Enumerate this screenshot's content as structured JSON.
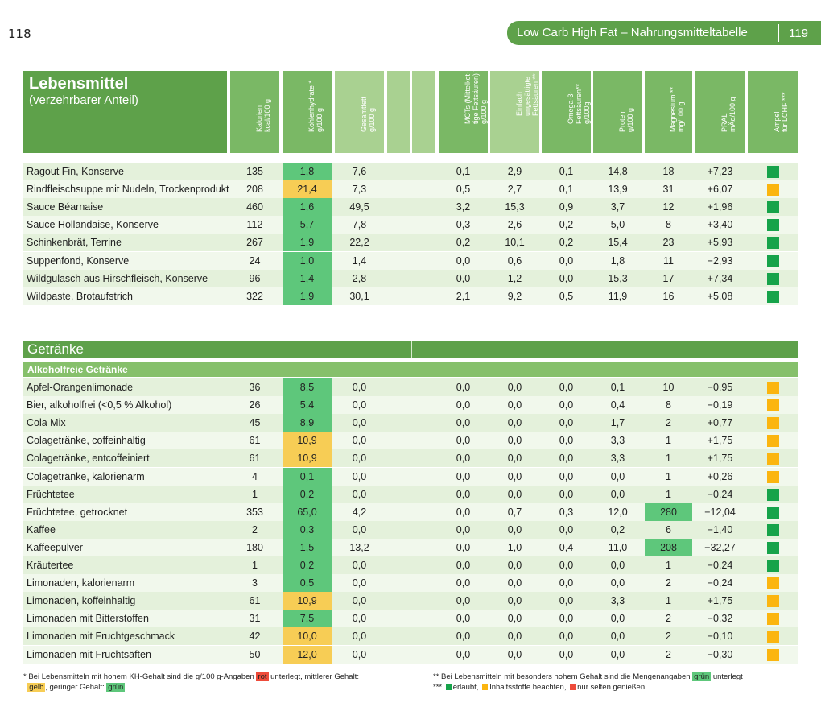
{
  "page": {
    "left_number": "118",
    "right_title": "Low Carb High Fat – Nahrungsmitteltabelle",
    "right_number": "119"
  },
  "header": {
    "title": "Lebensmittel",
    "subtitle": "(verzehrbarer Anteil)",
    "columns": [
      "Kalorien\nkcal/100 g",
      "Kohlenhydrate *\ng/100 g",
      "Gesamtfett\ng/100 g",
      "",
      "",
      "MCTs (Mittelket-\ntige Fettsäuren) **\ng/100 g",
      "Einfach\nungesättigte\nFettsäuren **\ng/100 g",
      "Omega-3-\nFettsäuren**\ng/100g",
      "Protein\ng/100 g",
      "Magnesium **\nmg/100 g",
      "PRAL\nmÄq/100 g",
      "Ampel\nfür LCHF ***"
    ]
  },
  "rows_top": [
    {
      "name": "Ragout Fin, Konserve",
      "kcal": "135",
      "kh": "1,8",
      "kh_hl": "g",
      "fat": "7,6",
      "mct": "0,1",
      "mufa": "2,9",
      "omega": "0,1",
      "protein": "14,8",
      "mg": "18",
      "mg_hl": "",
      "pral": "+7,23",
      "ampel": "g"
    },
    {
      "name": "Rindfleischsuppe mit Nudeln, Trockenprodukt",
      "kcal": "208",
      "kh": "21,4",
      "kh_hl": "y",
      "fat": "7,3",
      "mct": "0,5",
      "mufa": "2,7",
      "omega": "0,1",
      "protein": "13,9",
      "mg": "31",
      "mg_hl": "",
      "pral": "+6,07",
      "ampel": "y"
    },
    {
      "name": "Sauce Béarnaise",
      "kcal": "460",
      "kh": "1,6",
      "kh_hl": "g",
      "fat": "49,5",
      "mct": "3,2",
      "mufa": "15,3",
      "omega": "0,9",
      "protein": "3,7",
      "mg": "12",
      "mg_hl": "",
      "pral": "+1,96",
      "ampel": "g"
    },
    {
      "name": "Sauce Hollandaise, Konserve",
      "kcal": "112",
      "kh": "5,7",
      "kh_hl": "g",
      "fat": "7,8",
      "mct": "0,3",
      "mufa": "2,6",
      "omega": "0,2",
      "protein": "5,0",
      "mg": "8",
      "mg_hl": "",
      "pral": "+3,40",
      "ampel": "g"
    },
    {
      "name": "Schinkenbrät, Terrine",
      "kcal": "267",
      "kh": "1,9",
      "kh_hl": "g",
      "fat": "22,2",
      "mct": "0,2",
      "mufa": "10,1",
      "omega": "0,2",
      "protein": "15,4",
      "mg": "23",
      "mg_hl": "",
      "pral": "+5,93",
      "ampel": "g"
    },
    {
      "name": "Suppenfond, Konserve",
      "kcal": "24",
      "kh": "1,0",
      "kh_hl": "g",
      "fat": "1,4",
      "mct": "0,0",
      "mufa": "0,6",
      "omega": "0,0",
      "protein": "1,8",
      "mg": "11",
      "mg_hl": "",
      "pral": "−2,93",
      "ampel": "g"
    },
    {
      "name": "Wildgulasch aus Hirschfleisch, Konserve",
      "kcal": "96",
      "kh": "1,4",
      "kh_hl": "g",
      "fat": "2,8",
      "mct": "0,0",
      "mufa": "1,2",
      "omega": "0,0",
      "protein": "15,3",
      "mg": "17",
      "mg_hl": "",
      "pral": "+7,34",
      "ampel": "g"
    },
    {
      "name": "Wildpaste, Brotaufstrich",
      "kcal": "322",
      "kh": "1,9",
      "kh_hl": "g",
      "fat": "30,1",
      "mct": "2,1",
      "mufa": "9,2",
      "omega": "0,5",
      "protein": "11,9",
      "mg": "16",
      "mg_hl": "",
      "pral": "+5,08",
      "ampel": "g"
    }
  ],
  "section": {
    "title": "Getränke",
    "subtitle": "Alkoholfreie Getränke"
  },
  "rows_drinks": [
    {
      "name": "Apfel-Orangenlimonade",
      "kcal": "36",
      "kh": "8,5",
      "kh_hl": "g",
      "fat": "0,0",
      "mct": "0,0",
      "mufa": "0,0",
      "omega": "0,0",
      "protein": "0,1",
      "mg": "10",
      "mg_hl": "",
      "pral": "−0,95",
      "ampel": "y"
    },
    {
      "name": "Bier, alkoholfrei (<0,5 % Alkohol)",
      "kcal": "26",
      "kh": "5,4",
      "kh_hl": "g",
      "fat": "0,0",
      "mct": "0,0",
      "mufa": "0,0",
      "omega": "0,0",
      "protein": "0,4",
      "mg": "8",
      "mg_hl": "",
      "pral": "−0,19",
      "ampel": "y"
    },
    {
      "name": "Cola Mix",
      "kcal": "45",
      "kh": "8,9",
      "kh_hl": "g",
      "fat": "0,0",
      "mct": "0,0",
      "mufa": "0,0",
      "omega": "0,0",
      "protein": "1,7",
      "mg": "2",
      "mg_hl": "",
      "pral": "+0,77",
      "ampel": "y"
    },
    {
      "name": "Colageträn­ke, coffeinhaltig",
      "kcal": "61",
      "kh": "10,9",
      "kh_hl": "y",
      "fat": "0,0",
      "mct": "0,0",
      "mufa": "0,0",
      "omega": "0,0",
      "protein": "3,3",
      "mg": "1",
      "mg_hl": "",
      "pral": "+1,75",
      "ampel": "y"
    },
    {
      "name": "Colageträn­ke, entcoffeiniert",
      "kcal": "61",
      "kh": "10,9",
      "kh_hl": "y",
      "fat": "0,0",
      "mct": "0,0",
      "mufa": "0,0",
      "omega": "0,0",
      "protein": "3,3",
      "mg": "1",
      "mg_hl": "",
      "pral": "+1,75",
      "ampel": "y"
    },
    {
      "name": "Colageträn­ke, kalorienarm",
      "kcal": "4",
      "kh": "0,1",
      "kh_hl": "g",
      "fat": "0,0",
      "mct": "0,0",
      "mufa": "0,0",
      "omega": "0,0",
      "protein": "0,0",
      "mg": "1",
      "mg_hl": "",
      "pral": "+0,26",
      "ampel": "y"
    },
    {
      "name": "Früchtetee",
      "kcal": "1",
      "kh": "0,2",
      "kh_hl": "g",
      "fat": "0,0",
      "mct": "0,0",
      "mufa": "0,0",
      "omega": "0,0",
      "protein": "0,0",
      "mg": "1",
      "mg_hl": "",
      "pral": "−0,24",
      "ampel": "g"
    },
    {
      "name": "Früchtetee, getrocknet",
      "kcal": "353",
      "kh": "65,0",
      "kh_hl": "g",
      "fat": "4,2",
      "mct": "0,0",
      "mufa": "0,7",
      "omega": "0,3",
      "protein": "12,0",
      "mg": "280",
      "mg_hl": "g",
      "pral": "−12,04",
      "ampel": "g"
    },
    {
      "name": "Kaffee",
      "kcal": "2",
      "kh": "0,3",
      "kh_hl": "g",
      "fat": "0,0",
      "mct": "0,0",
      "mufa": "0,0",
      "omega": "0,0",
      "protein": "0,2",
      "mg": "6",
      "mg_hl": "",
      "pral": "−1,40",
      "ampel": "g"
    },
    {
      "name": "Kaffeepulver",
      "kcal": "180",
      "kh": "1,5",
      "kh_hl": "g",
      "fat": "13,2",
      "mct": "0,0",
      "mufa": "1,0",
      "omega": "0,4",
      "protein": "11,0",
      "mg": "208",
      "mg_hl": "g",
      "pral": "−32,27",
      "ampel": "g"
    },
    {
      "name": "Kräutertee",
      "kcal": "1",
      "kh": "0,2",
      "kh_hl": "g",
      "fat": "0,0",
      "mct": "0,0",
      "mufa": "0,0",
      "omega": "0,0",
      "protein": "0,0",
      "mg": "1",
      "mg_hl": "",
      "pral": "−0,24",
      "ampel": "g"
    },
    {
      "name": "Limonaden, kalorienarm",
      "kcal": "3",
      "kh": "0,5",
      "kh_hl": "g",
      "fat": "0,0",
      "mct": "0,0",
      "mufa": "0,0",
      "omega": "0,0",
      "protein": "0,0",
      "mg": "2",
      "mg_hl": "",
      "pral": "−0,24",
      "ampel": "y"
    },
    {
      "name": "Limonaden, koffeinhaltig",
      "kcal": "61",
      "kh": "10,9",
      "kh_hl": "y",
      "fat": "0,0",
      "mct": "0,0",
      "mufa": "0,0",
      "omega": "0,0",
      "protein": "3,3",
      "mg": "1",
      "mg_hl": "",
      "pral": "+1,75",
      "ampel": "y"
    },
    {
      "name": "Limonaden mit Bitterstoffen",
      "kcal": "31",
      "kh": "7,5",
      "kh_hl": "g",
      "fat": "0,0",
      "mct": "0,0",
      "mufa": "0,0",
      "omega": "0,0",
      "protein": "0,0",
      "mg": "2",
      "mg_hl": "",
      "pral": "−0,32",
      "ampel": "y"
    },
    {
      "name": "Limonaden mit Fruchtgeschmack",
      "kcal": "42",
      "kh": "10,0",
      "kh_hl": "y",
      "fat": "0,0",
      "mct": "0,0",
      "mufa": "0,0",
      "omega": "0,0",
      "protein": "0,0",
      "mg": "2",
      "mg_hl": "",
      "pral": "−0,10",
      "ampel": "y"
    },
    {
      "name": "Limonaden mit Fruchtsäften",
      "kcal": "50",
      "kh": "12,0",
      "kh_hl": "y",
      "fat": "0,0",
      "mct": "0,0",
      "mufa": "0,0",
      "omega": "0,0",
      "protein": "0,0",
      "mg": "2",
      "mg_hl": "",
      "pral": "−0,30",
      "ampel": "y"
    }
  ],
  "footnotes": {
    "f1_a": "*  Bei Lebensmitteln mit hohem KH-Gehalt sind die g/100 g-Angaben",
    "f1_rot": "rot",
    "f1_b": "unterlegt, mittlerer Gehalt:",
    "f1_gelb": "gelb",
    "f1_c": ", geringer Gehalt:",
    "f1_gruen": "grün",
    "f2_a": "**  Bei Lebensmitteln mit besonders hohem Gehalt sind die Mengenangaben",
    "f2_gruen": "grün",
    "f2_b": "unterlegt",
    "f3_star": "***",
    "f3_erlaubt": "erlaubt,",
    "f3_beachten": "Inhaltsstoffe beachten,",
    "f3_selten": "nur selten genießen"
  },
  "colors": {
    "green_dark": "#5ea14a",
    "green_hl": "#5ec77b",
    "yellow_hl": "#f7cd55",
    "ampel_green": "#16a34a",
    "ampel_yellow": "#fbb50f",
    "red": "#ee4b3a"
  }
}
